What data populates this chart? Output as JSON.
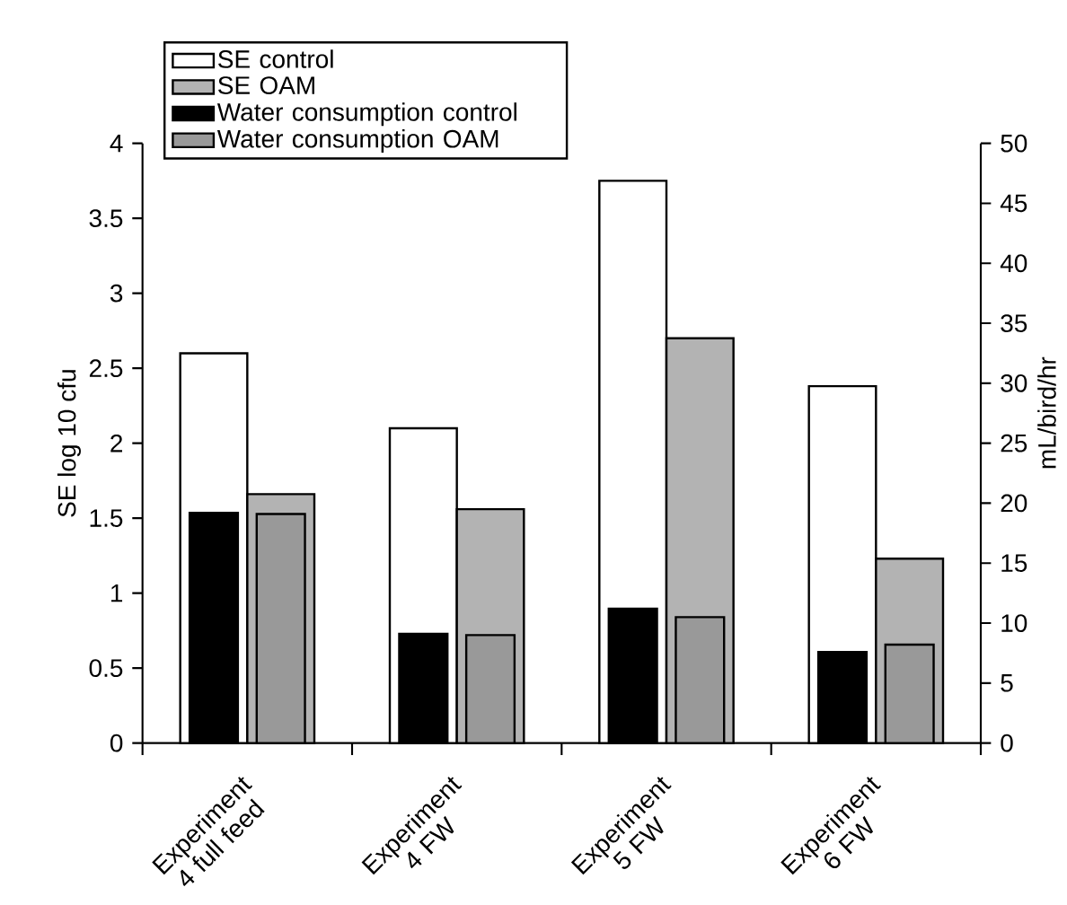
{
  "chart_data": {
    "type": "bar",
    "categories": [
      "Experiment 4 full feed",
      "Experiment 4 FW",
      "Experiment 5 FW",
      "Experiment 6 FW"
    ],
    "series": [
      {
        "name": "SE control",
        "color": "#ffffff",
        "values": [
          2.6,
          2.1,
          3.75,
          2.38
        ]
      },
      {
        "name": "SE OAM",
        "color": "#b3b3b3",
        "values": [
          1.66,
          1.56,
          2.7,
          1.23
        ]
      },
      {
        "name": "Water consumption control",
        "color": "#000000",
        "axis": "y2",
        "values": [
          19.2,
          9.1,
          11.2,
          7.6
        ]
      },
      {
        "name": "Water consumption OAM",
        "color": "#999999",
        "axis": "y2",
        "values": [
          19.1,
          9.0,
          10.5,
          8.2
        ]
      }
    ],
    "ylabel": "SE log 10 cfu",
    "y2label": "mL/bird/hr",
    "ylim": [
      0,
      4
    ],
    "yticks": [
      0,
      0.5,
      1,
      1.5,
      2,
      2.5,
      3,
      3.5,
      4
    ],
    "y2lim": [
      0,
      50
    ],
    "y2ticks": [
      0,
      5,
      10,
      15,
      20,
      25,
      30,
      35,
      40,
      45,
      50
    ],
    "legend": "top left"
  }
}
